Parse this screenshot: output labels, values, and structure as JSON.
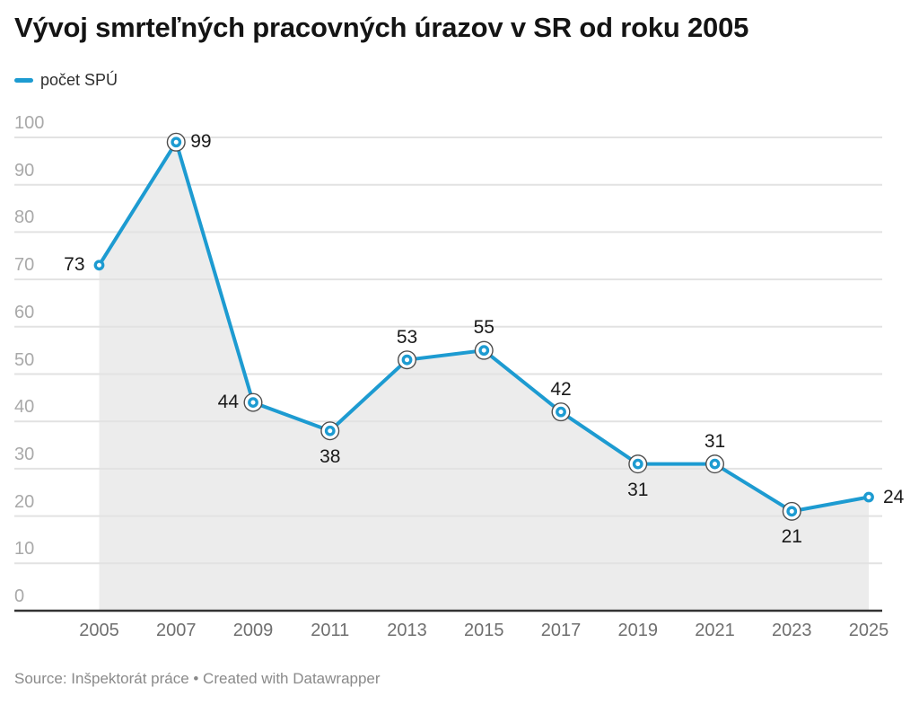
{
  "header": {
    "title": "Vývoj smrteľných pracovných úrazov v SR od roku 2005"
  },
  "legend": {
    "label": "počet SPÚ",
    "color": "#1d9bd1"
  },
  "chart_data": {
    "type": "line",
    "title": "Vývoj smrteľných pracovných úrazov v SR od roku 2005",
    "x": [
      2005,
      2007,
      2009,
      2011,
      2013,
      2015,
      2017,
      2019,
      2021,
      2023,
      2025
    ],
    "values": [
      73,
      99,
      44,
      38,
      53,
      55,
      42,
      31,
      31,
      21,
      24
    ],
    "series_name": "počet SPÚ",
    "xlabel": "",
    "ylabel": "",
    "ylim": [
      0,
      100
    ],
    "ytick_step": 10,
    "xticks": [
      "2005",
      "2007",
      "2009",
      "2011",
      "2013",
      "2015",
      "2017",
      "2019",
      "2021",
      "2023",
      "2025"
    ],
    "grid": true,
    "legend_position": "top-left",
    "line_color": "#1d9bd1",
    "area_fill_color": "#ececec",
    "grid_color": "#e2e2e2",
    "baseline_color": "#333333",
    "marker_ring_color": "#4e4e4e",
    "ytick_color": "#a9a9a9",
    "xtick_color": "#6f6f6f",
    "value_label_color": "#1a1a1a",
    "label_positions": [
      "left",
      "right",
      "left",
      "below",
      "above",
      "above",
      "above",
      "below",
      "above",
      "below",
      "right"
    ],
    "ringed_points": [
      false,
      true,
      true,
      true,
      true,
      true,
      true,
      true,
      true,
      true,
      false
    ]
  },
  "footer": {
    "source": "Source: Inšpektorát práce • Created with Datawrapper"
  }
}
